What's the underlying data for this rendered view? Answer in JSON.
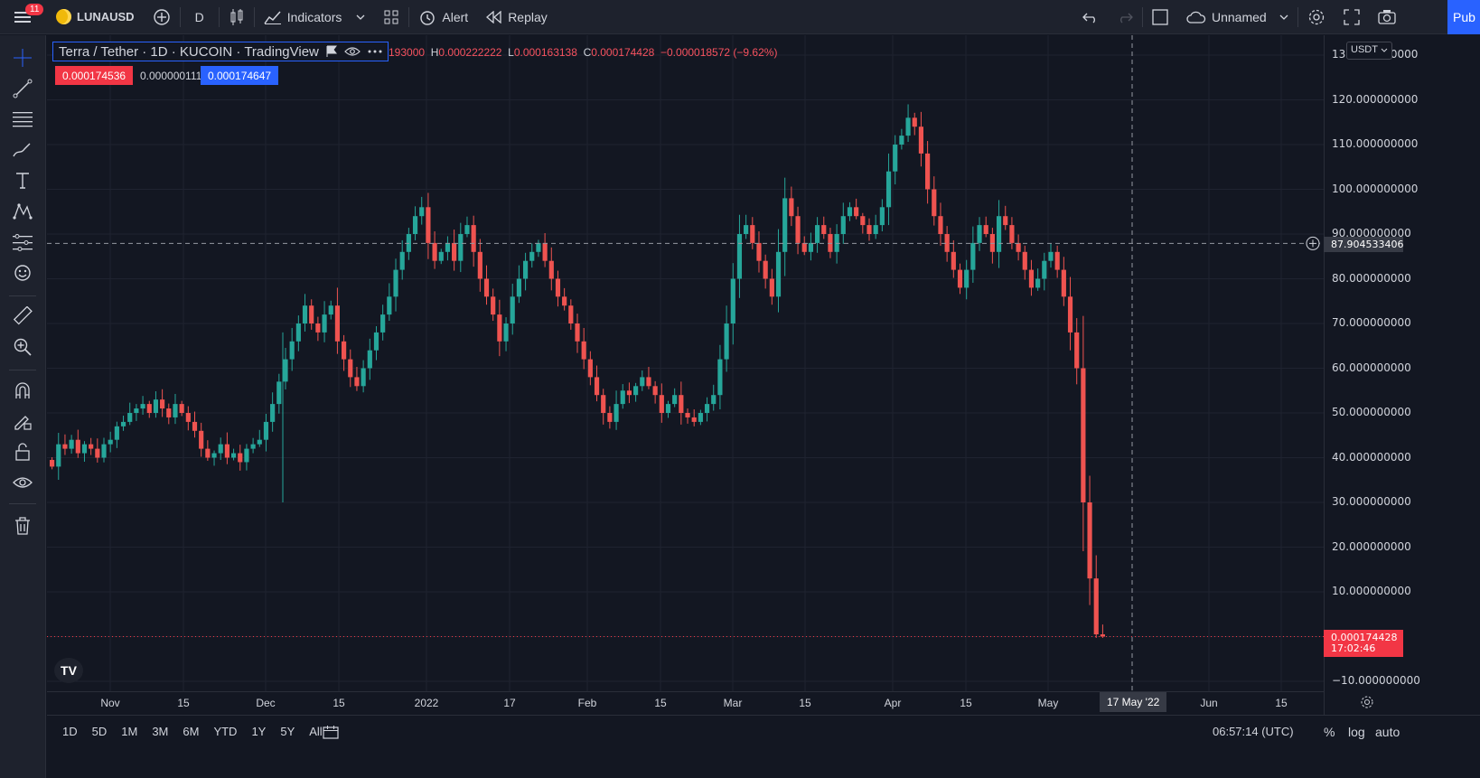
{
  "toolbar": {
    "badge_count": "11",
    "symbol": "LUNAUSD",
    "interval": "D",
    "indicators_label": "Indicators",
    "alert_label": "Alert",
    "replay_label": "Replay",
    "layout_name": "Unnamed",
    "publish_label": "Pub"
  },
  "legend": {
    "title": "Terra / Tether · 1D · KUCOIN · TradingView",
    "open_partial": "193000",
    "high_key": "H",
    "high": "0.000222222",
    "low_key": "L",
    "low": "0.000163138",
    "close_key": "C",
    "close": "0.000174428",
    "change": "−0.000018572 (−9.62%)",
    "bid": "0.000174536",
    "spread": "0.000000111",
    "ask": "0.000174647"
  },
  "price_scale": {
    "currency": "USDT",
    "labels": [
      "130.000000000",
      "120.000000000",
      "110.000000000",
      "100.000000000",
      "90.000000000",
      "80.000000000",
      "70.000000000",
      "60.000000000",
      "50.000000000",
      "40.000000000",
      "30.000000000",
      "20.000000000",
      "10.000000000",
      "−10.000000000"
    ],
    "crosshair_price": "87.904533406",
    "last_price": "0.000174428",
    "countdown": "17:02:46"
  },
  "time_axis": {
    "labels": [
      "Nov",
      "15",
      "Dec",
      "15",
      "2022",
      "17",
      "Feb",
      "15",
      "Mar",
      "15",
      "Apr",
      "15",
      "May",
      "Jun",
      "15"
    ],
    "crosshair_date": "17 May '22"
  },
  "bottom": {
    "ranges": [
      "1D",
      "5D",
      "1M",
      "3M",
      "6M",
      "YTD",
      "1Y",
      "5Y",
      "All"
    ],
    "clock": "06:57:14 (UTC)",
    "percent": "%",
    "log": "log",
    "auto": "auto"
  },
  "colors": {
    "up": "#26a69a",
    "down": "#ef5350",
    "accent": "#2962ff",
    "background": "#131722"
  },
  "chart_data": {
    "type": "candlestick",
    "closes": [
      38,
      43,
      42,
      44,
      41,
      43,
      42,
      40,
      43,
      44,
      47,
      48,
      50,
      51,
      52,
      50,
      53,
      51,
      49,
      52,
      50,
      48,
      46,
      42,
      40,
      41,
      43,
      40,
      41,
      39,
      42,
      43,
      44,
      48,
      52,
      57,
      62,
      66,
      70,
      74,
      70,
      68,
      72,
      74,
      66,
      62,
      58,
      56,
      60,
      64,
      68,
      72,
      76,
      82,
      86,
      90,
      94,
      96,
      88,
      84,
      86,
      88,
      84,
      90,
      92,
      86,
      80,
      76,
      72,
      66,
      70,
      76,
      80,
      84,
      86,
      88,
      84,
      80,
      76,
      74,
      70,
      66,
      62,
      58,
      54,
      50,
      48,
      52,
      55,
      54,
      56,
      58,
      56,
      54,
      50,
      52,
      54,
      50,
      49,
      48,
      50,
      52,
      54,
      62,
      70,
      80,
      90,
      92,
      88,
      84,
      80,
      76,
      86,
      98,
      94,
      88,
      86,
      88,
      92,
      90,
      86,
      90,
      94,
      96,
      94,
      92,
      90,
      92,
      96,
      104,
      110,
      112,
      116,
      114,
      108,
      100,
      94,
      90,
      86,
      82,
      78,
      82,
      88,
      92,
      90,
      86,
      94,
      92,
      88,
      86,
      82,
      78,
      80,
      84,
      86,
      82,
      76,
      68,
      60,
      30,
      13,
      0.5,
      0.0002
    ]
  }
}
